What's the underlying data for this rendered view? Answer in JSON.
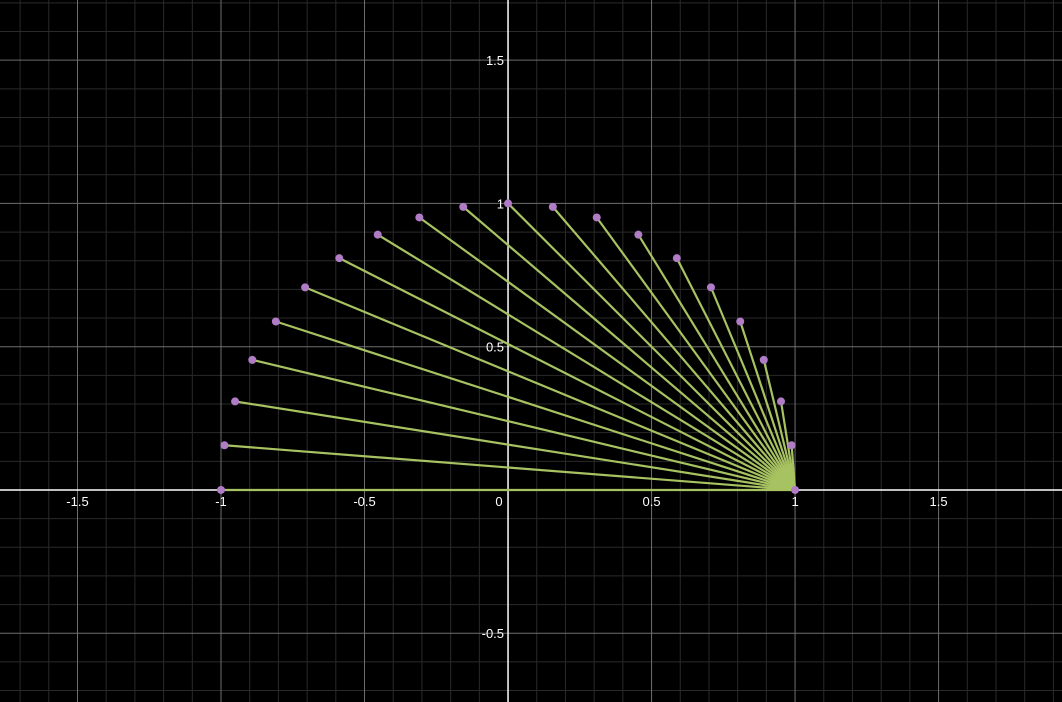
{
  "chart_data": {
    "type": "scatter",
    "title": "",
    "xlabel": "",
    "ylabel": "",
    "xlim": [
      -1.77,
      1.93
    ],
    "ylim": [
      -0.74,
      1.71
    ],
    "grid": true,
    "minor_grid": true,
    "x_ticks": [
      {
        "value": -1.5,
        "label": "-1.5"
      },
      {
        "value": -1,
        "label": "-1"
      },
      {
        "value": -0.5,
        "label": "-0.5"
      },
      {
        "value": 0,
        "label": "0"
      },
      {
        "value": 0.5,
        "label": "0.5"
      },
      {
        "value": 1,
        "label": "1"
      },
      {
        "value": 1.5,
        "label": "1.5"
      }
    ],
    "y_ticks": [
      {
        "value": 1.5,
        "label": "1.5"
      },
      {
        "value": 1,
        "label": "1"
      },
      {
        "value": 0.5,
        "label": "0.5"
      },
      {
        "value": -0.5,
        "label": "-0.5"
      }
    ],
    "hub": {
      "x": 1,
      "y": 0
    },
    "points": [
      {
        "x": 1.0,
        "y": 0.0
      },
      {
        "x": 0.988,
        "y": 0.156
      },
      {
        "x": 0.951,
        "y": 0.309
      },
      {
        "x": 0.891,
        "y": 0.454
      },
      {
        "x": 0.809,
        "y": 0.588
      },
      {
        "x": 0.707,
        "y": 0.707
      },
      {
        "x": 0.588,
        "y": 0.809
      },
      {
        "x": 0.454,
        "y": 0.891
      },
      {
        "x": 0.309,
        "y": 0.951
      },
      {
        "x": 0.156,
        "y": 0.988
      },
      {
        "x": 0.0,
        "y": 1.0
      },
      {
        "x": -0.156,
        "y": 0.988
      },
      {
        "x": -0.309,
        "y": 0.951
      },
      {
        "x": -0.454,
        "y": 0.891
      },
      {
        "x": -0.588,
        "y": 0.809
      },
      {
        "x": -0.707,
        "y": 0.707
      },
      {
        "x": -0.809,
        "y": 0.588
      },
      {
        "x": -0.891,
        "y": 0.454
      },
      {
        "x": -0.951,
        "y": 0.309
      },
      {
        "x": -0.988,
        "y": 0.156
      },
      {
        "x": -1.0,
        "y": 0.0
      }
    ],
    "colors": {
      "background": "#000000",
      "major_grid": "#6e6e6e",
      "minor_grid": "#2a2a2a",
      "axis": "#ffffff",
      "segment": "#a7c261",
      "point": "#b07cc6",
      "tick_label": "#ffffff"
    }
  }
}
